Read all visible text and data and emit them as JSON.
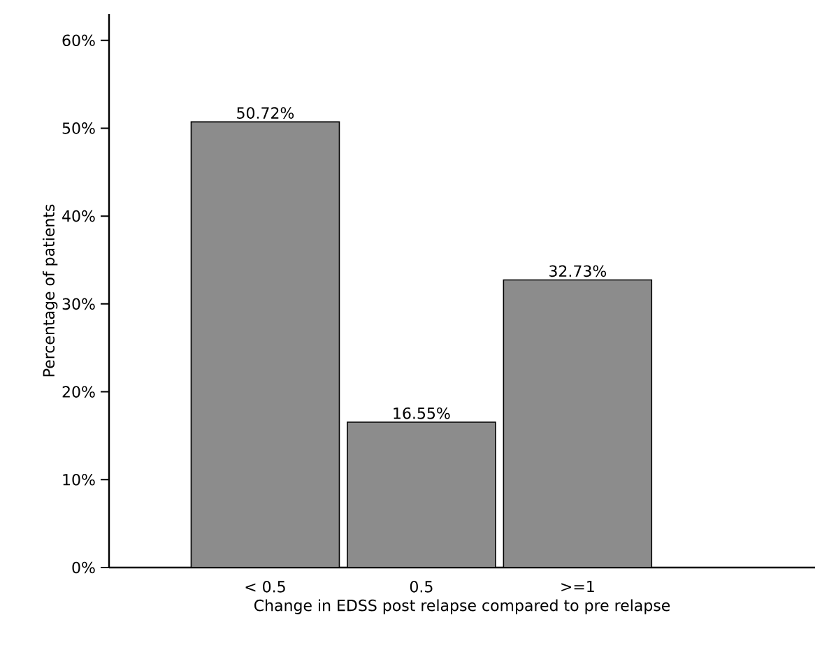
{
  "chart_data": {
    "type": "bar",
    "xlabel": "Change in EDSS post relapse compared to pre relapse",
    "ylabel": "Percentage of patients",
    "categories": [
      "< 0.5",
      "0.5",
      ">=1"
    ],
    "values": [
      50.72,
      16.55,
      32.73
    ],
    "value_labels": [
      "50.72%",
      "16.55%",
      "32.73%"
    ],
    "color": "#8c8c8c",
    "ylim": [
      0,
      63
    ],
    "yticks": [
      {
        "value": 0,
        "label": "0%"
      },
      {
        "value": 10,
        "label": "10%"
      },
      {
        "value": 20,
        "label": "20%"
      },
      {
        "value": 30,
        "label": "30%"
      },
      {
        "value": 40,
        "label": "40%"
      },
      {
        "value": 50,
        "label": "50%"
      },
      {
        "value": 60,
        "label": "60%"
      }
    ],
    "grid": false
  }
}
